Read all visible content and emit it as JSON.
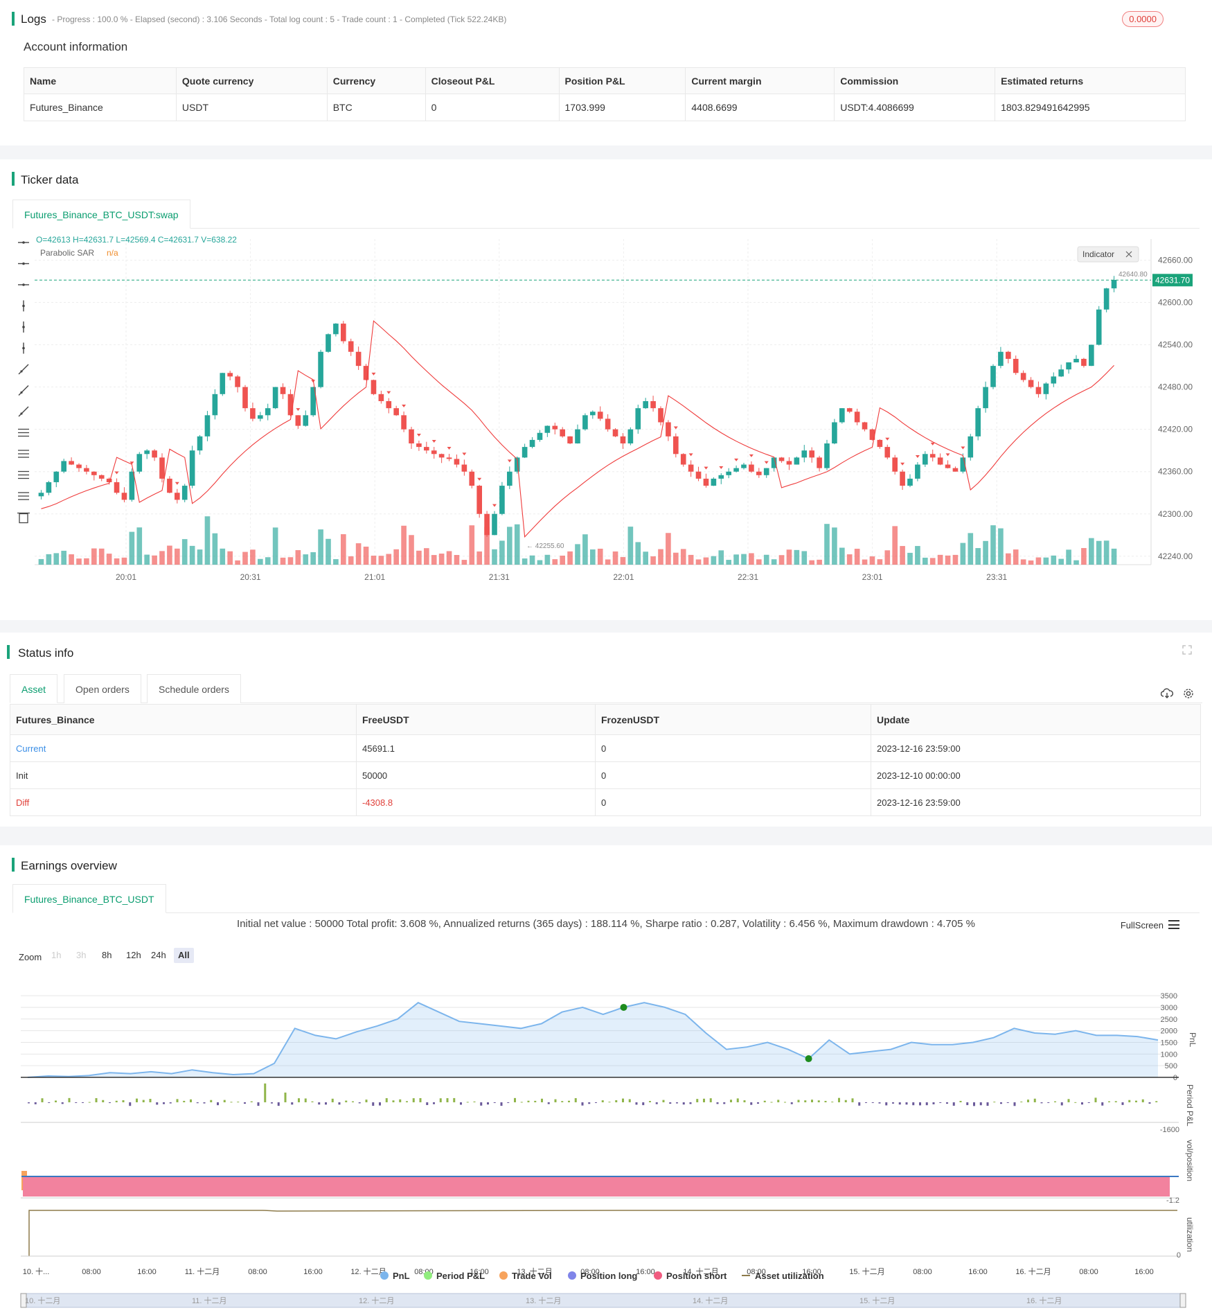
{
  "logs": {
    "title": "Logs",
    "meta": "- Progress : 100.0 % - Elapsed (second) : 3.106  Seconds - Total log count : 5 - Trade count : 1 - Completed (Tick 522.24KB)",
    "badge": "0.0000"
  },
  "account": {
    "title": "Account information",
    "headers": [
      "Name",
      "Quote currency",
      "Currency",
      "Closeout P&L",
      "Position P&L",
      "Current margin",
      "Commission",
      "Estimated returns"
    ],
    "row": [
      "Futures_Binance",
      "USDT",
      "BTC",
      "0",
      "1703.999",
      "4408.6699",
      "USDT:4.4086699",
      "1803.829491642995"
    ]
  },
  "ticker": {
    "title": "Ticker data",
    "tab": "Futures_Binance_BTC_USDT:swap",
    "ohlc": "O=42613 H=42631.7 L=42569.4 C=42631.7 V=638.22",
    "indicator_name": "Parabolic SAR",
    "indicator_value": "n/a",
    "indicator_button": "Indicator",
    "last_price": "42631.70",
    "high_label": "42640.80",
    "low_label": "42255.60",
    "colors": {
      "up": "#26a69a",
      "down": "#ef5350",
      "sar": "#ef3b3b",
      "last": "#1aa37a"
    }
  },
  "chart_data": {
    "type": "candlestick",
    "y_ticks": [
      "42660.00",
      "42600.00",
      "42540.00",
      "42480.00",
      "42420.00",
      "42360.00",
      "42300.00",
      "42240.00"
    ],
    "x_ticks": [
      "20:01",
      "20:31",
      "21:01",
      "21:31",
      "22:01",
      "22:31",
      "23:01",
      "23:31"
    ],
    "ylim": [
      42228,
      42690
    ],
    "close_path": [
      42330,
      42345,
      42360,
      42375,
      42370,
      42365,
      42360,
      42355,
      42350,
      42345,
      42330,
      42320,
      42360,
      42385,
      42390,
      42380,
      42350,
      42330,
      42320,
      42340,
      42390,
      42410,
      42440,
      42470,
      42500,
      42495,
      42480,
      42450,
      42435,
      42440,
      42450,
      42480,
      42470,
      42440,
      42425,
      42440,
      42480,
      42530,
      42555,
      42570,
      42545,
      42530,
      42510,
      42490,
      42470,
      42460,
      42450,
      42440,
      42420,
      42400,
      42395,
      42390,
      42385,
      42380,
      42378,
      42370,
      42360,
      42340,
      42300,
      42270,
      42300,
      42340,
      42360,
      42380,
      42395,
      42405,
      42415,
      42425,
      42420,
      42410,
      42400,
      42420,
      42440,
      42445,
      42435,
      42420,
      42410,
      42400,
      42420,
      42450,
      42460,
      42450,
      42430,
      42410,
      42385,
      42370,
      42360,
      42350,
      42340,
      42350,
      42355,
      42360,
      42365,
      42370,
      42360,
      42355,
      42365,
      42380,
      42375,
      42370,
      42380,
      42390,
      42380,
      42365,
      42400,
      42430,
      42450,
      42445,
      42430,
      42420,
      42405,
      42395,
      42380,
      42360,
      42340,
      42350,
      42370,
      42385,
      42380,
      42370,
      42365,
      42360,
      42380,
      42410,
      42450,
      42480,
      42510,
      42530,
      42520,
      42500,
      42490,
      42480,
      42470,
      42485,
      42495,
      42505,
      42515,
      42520,
      42510,
      42540,
      42590,
      42620,
      42632
    ]
  },
  "status": {
    "title": "Status info",
    "tabs": [
      "Asset",
      "Open orders",
      "Schedule orders"
    ],
    "headers": [
      "Futures_Binance",
      "FreeUSDT",
      "FrozenUSDT",
      "Update"
    ],
    "rows": [
      [
        "Current",
        "45691.1",
        "0",
        "2023-12-16 23:59:00"
      ],
      [
        "Init",
        "50000",
        "0",
        "2023-12-10 00:00:00"
      ],
      [
        "Diff",
        "-4308.8",
        "0",
        "2023-12-16 23:59:00"
      ]
    ]
  },
  "earnings": {
    "title": "Earnings overview",
    "tab": "Futures_Binance_BTC_USDT",
    "summary": "Initial net value : 50000 Total profit: 3.608 %, Annualized returns (365 days) : 188.114 %, Sharpe ratio : 0.287, Volatility : 6.456 %, Maximum drawdown : 4.705 %",
    "fullscreen": "FullScreen",
    "zoom_label": "Zoom",
    "zoom_buttons": [
      "1h",
      "3h",
      "8h",
      "12h",
      "24h",
      "All"
    ],
    "pnl_ticks": [
      "3500",
      "3000",
      "2500",
      "2000",
      "1500",
      "1000",
      "500",
      "0"
    ],
    "pnl_axis": "PnL",
    "period_axis": "Period P&L",
    "period_tick": "-1600",
    "vol_axis": "vol/position",
    "vol_tick": "-1.2",
    "util_axis": "utilization",
    "util_tick": "0",
    "x_ticks": [
      "10. 十...",
      "08:00",
      "16:00",
      "11. 十二月",
      "08:00",
      "16:00",
      "12. 十二月",
      "08:00",
      "16:00",
      "13. 十二月",
      "08:00",
      "16:00",
      "14. 十二月",
      "08:00",
      "16:00",
      "15. 十二月",
      "08:00",
      "16:00",
      "16. 十二月",
      "08:00",
      "16:00"
    ],
    "legend": [
      "PnL",
      "Period P&L",
      "Trade Vol",
      "Position long",
      "Position short",
      "Asset utilization"
    ],
    "legend_colors": [
      "#7cb5ec",
      "#90ed7d",
      "#f7a35c",
      "#8085e9",
      "#f15c80",
      "#8d7a4a"
    ],
    "navigator": [
      "10. 十二月",
      "11. 十二月",
      "12. 十二月",
      "13. 十二月",
      "14. 十二月",
      "15. 十二月",
      "16. 十二月"
    ],
    "pnl_series": [
      0,
      60,
      40,
      80,
      200,
      160,
      240,
      160,
      320,
      200,
      120,
      160,
      600,
      2100,
      1800,
      1650,
      1950,
      2200,
      2500,
      3200,
      2800,
      2400,
      2300,
      2200,
      2100,
      2300,
      2800,
      3000,
      2700,
      3000,
      3200,
      3000,
      2700,
      1900,
      1200,
      1300,
      1500,
      1200,
      800,
      1600,
      1000,
      1100,
      1200,
      1500,
      1400,
      1400,
      1500,
      1700,
      2100,
      1900,
      1850,
      2000,
      1800,
      1800,
      1750,
      1600
    ]
  }
}
